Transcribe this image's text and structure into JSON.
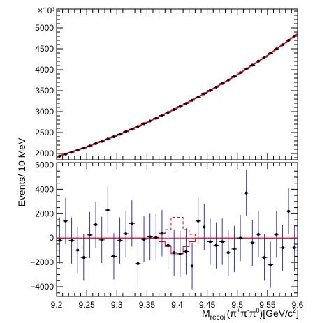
{
  "chart_data": [
    {
      "type": "line",
      "panel": "top",
      "exponent_label": "×10³",
      "ylim": [
        1850,
        5450
      ],
      "xlim": [
        9.2,
        9.6
      ],
      "yticks": [
        2000,
        2500,
        3000,
        3500,
        4000,
        4500,
        5000
      ],
      "ytick_labels": [
        "2000",
        "2500",
        "3000",
        "3500",
        "4000",
        "4500",
        "5000"
      ],
      "series": [
        {
          "role": "data",
          "x": [
            9.205,
            9.215,
            9.225,
            9.235,
            9.245,
            9.255,
            9.265,
            9.275,
            9.285,
            9.295,
            9.305,
            9.315,
            9.325,
            9.335,
            9.345,
            9.355,
            9.365,
            9.375,
            9.385,
            9.395,
            9.405,
            9.415,
            9.425,
            9.435,
            9.445,
            9.455,
            9.465,
            9.475,
            9.485,
            9.495,
            9.505,
            9.515,
            9.525,
            9.535,
            9.545,
            9.555,
            9.565,
            9.575,
            9.585,
            9.595
          ],
          "y": [
            1940,
            1985,
            2030,
            2080,
            2130,
            2180,
            2235,
            2290,
            2345,
            2400,
            2460,
            2520,
            2580,
            2645,
            2710,
            2775,
            2840,
            2910,
            2980,
            3050,
            3120,
            3195,
            3270,
            3345,
            3425,
            3505,
            3585,
            3670,
            3755,
            3840,
            3930,
            4020,
            4110,
            4205,
            4300,
            4395,
            4495,
            4595,
            4700,
            4805
          ]
        },
        {
          "role": "fit",
          "color": "#e8001c",
          "x": [
            9.2,
            9.25,
            9.3,
            9.35,
            9.4,
            9.45,
            9.5,
            9.55,
            9.6
          ],
          "y": [
            1920,
            2155,
            2430,
            2740,
            3085,
            3465,
            3880,
            4340,
            4855
          ]
        }
      ]
    },
    {
      "type": "scatter",
      "panel": "bottom",
      "ylim": [
        -4800,
        6200
      ],
      "xlim": [
        9.2,
        9.6
      ],
      "yticks": [
        -4000,
        -2000,
        0,
        2000,
        4000,
        6000
      ],
      "ytick_labels": [
        "−4000",
        "−2000",
        "0",
        "2000",
        "4000",
        "6000"
      ],
      "xticks": [
        9.2,
        9.25,
        9.3,
        9.35,
        9.4,
        9.45,
        9.5,
        9.55,
        9.6
      ],
      "xtick_labels": [
        "9.2",
        "9.25",
        "9.3",
        "9.35",
        "9.4",
        "9.45",
        "9.5",
        "9.55",
        "9.6"
      ],
      "residual_points": [
        {
          "x": 9.205,
          "y": -200,
          "err": 1900
        },
        {
          "x": 9.215,
          "y": 1400,
          "err": 1900
        },
        {
          "x": 9.225,
          "y": -200,
          "err": 1900
        },
        {
          "x": 9.235,
          "y": -1000,
          "err": 1900
        },
        {
          "x": 9.245,
          "y": -1600,
          "err": 1900
        },
        {
          "x": 9.255,
          "y": 250,
          "err": 1900
        },
        {
          "x": 9.265,
          "y": 1100,
          "err": 1900
        },
        {
          "x": 9.275,
          "y": -150,
          "err": 1900
        },
        {
          "x": 9.285,
          "y": 2300,
          "err": 1900
        },
        {
          "x": 9.295,
          "y": -1500,
          "err": 1900
        },
        {
          "x": 9.305,
          "y": -200,
          "err": 1900
        },
        {
          "x": 9.315,
          "y": 350,
          "err": 1900
        },
        {
          "x": 9.325,
          "y": 1200,
          "err": 1900
        },
        {
          "x": 9.335,
          "y": -2100,
          "err": 1900
        },
        {
          "x": 9.345,
          "y": -100,
          "err": 1900
        },
        {
          "x": 9.355,
          "y": 100,
          "err": 1900
        },
        {
          "x": 9.365,
          "y": 50,
          "err": 1900
        },
        {
          "x": 9.375,
          "y": 400,
          "err": 1900
        },
        {
          "x": 9.385,
          "y": -600,
          "err": 1900
        },
        {
          "x": 9.395,
          "y": -1200,
          "err": 1900
        },
        {
          "x": 9.405,
          "y": -1300,
          "err": 1900
        },
        {
          "x": 9.415,
          "y": -1100,
          "err": 1900
        },
        {
          "x": 9.425,
          "y": -2300,
          "err": 1900
        },
        {
          "x": 9.435,
          "y": 1400,
          "err": 1900
        },
        {
          "x": 9.445,
          "y": 900,
          "err": 1900
        },
        {
          "x": 9.455,
          "y": -300,
          "err": 1900
        },
        {
          "x": 9.465,
          "y": -600,
          "err": 1900
        },
        {
          "x": 9.475,
          "y": -300,
          "err": 1900
        },
        {
          "x": 9.485,
          "y": -1200,
          "err": 1900
        },
        {
          "x": 9.495,
          "y": -900,
          "err": 1900
        },
        {
          "x": 9.505,
          "y": 0,
          "err": 1900
        },
        {
          "x": 9.515,
          "y": 3700,
          "err": 1900
        },
        {
          "x": 9.525,
          "y": -400,
          "err": 1900
        },
        {
          "x": 9.535,
          "y": 300,
          "err": 1900
        },
        {
          "x": 9.545,
          "y": -1600,
          "err": 1900
        },
        {
          "x": 9.555,
          "y": -2200,
          "err": 1900
        },
        {
          "x": 9.565,
          "y": 300,
          "err": 1900
        },
        {
          "x": 9.575,
          "y": -800,
          "err": 1900
        },
        {
          "x": 9.585,
          "y": 2200,
          "err": 1900
        },
        {
          "x": 9.595,
          "y": -800,
          "err": 1900
        }
      ],
      "step_solid": [
        {
          "x0": 9.2,
          "x1": 9.37,
          "y": 0
        },
        {
          "x0": 9.37,
          "x1": 9.38,
          "y": -300
        },
        {
          "x0": 9.38,
          "x1": 9.39,
          "y": -700
        },
        {
          "x0": 9.39,
          "x1": 9.4,
          "y": -1300
        },
        {
          "x0": 9.4,
          "x1": 9.41,
          "y": -1300
        },
        {
          "x0": 9.41,
          "x1": 9.42,
          "y": -700
        },
        {
          "x0": 9.42,
          "x1": 9.43,
          "y": -300
        },
        {
          "x0": 9.43,
          "x1": 9.6,
          "y": 0
        }
      ],
      "step_dashed": [
        {
          "x0": 9.37,
          "x1": 9.38,
          "y": 300
        },
        {
          "x0": 9.38,
          "x1": 9.39,
          "y": 700
        },
        {
          "x0": 9.39,
          "x1": 9.4,
          "y": 1700
        },
        {
          "x0": 9.4,
          "x1": 9.41,
          "y": 1700
        },
        {
          "x0": 9.41,
          "x1": 9.42,
          "y": 700
        },
        {
          "x0": 9.42,
          "x1": 9.43,
          "y": 300
        }
      ],
      "data_color": "#3333aa",
      "curve_color": "#e8001c"
    }
  ],
  "ylabel": "Events/ 10 MeV",
  "xlabel": {
    "main": "M",
    "subscript": "recoil",
    "paren": "(π",
    "sup1": "+",
    "mid1": "π",
    "sup2": "-",
    "mid2": "π",
    "sup3": "0",
    "units": ")[GeV/c",
    "sup4": "2",
    "end": "]"
  }
}
